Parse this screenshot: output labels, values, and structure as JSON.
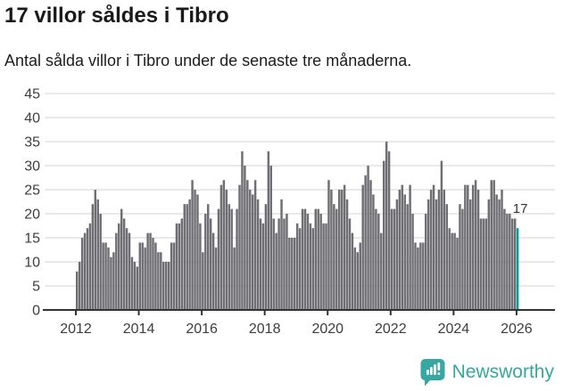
{
  "header": {
    "title": "17 villor såldes i Tibro",
    "subtitle": "Antal sålda villor i Tibro under de senaste tre månaderna."
  },
  "footer": {
    "brand": "Newsworthy"
  },
  "colors": {
    "bar": "#6e6e73",
    "highlight": "#00a096",
    "brand_teal": "#38a7a1",
    "gridline": "#dcdcdc",
    "axis_line": "#333333",
    "axis_text": "#3d3d3d",
    "annotation_text": "#333333"
  },
  "chart_data": {
    "type": "bar",
    "title": "17 villor såldes i Tibro",
    "subtitle": "Antal sålda villor i Tibro under de senaste tre månaderna.",
    "frequency": "monthly",
    "start_year": 2012,
    "start_month": 1,
    "ylim": [
      0,
      45
    ],
    "y_ticks": [
      0,
      5,
      10,
      15,
      20,
      25,
      30,
      35,
      40,
      45
    ],
    "x_ticks": [
      2012,
      2014,
      2016,
      2018,
      2020,
      2022,
      2024,
      2026
    ],
    "grid": "horizontal",
    "legend": "none",
    "annotation": {
      "label": "17",
      "applies_to": "last-bar"
    },
    "highlight_last_bar": true,
    "values": [
      8,
      10,
      15,
      16,
      17,
      18,
      22,
      25,
      23,
      20,
      14,
      14,
      13,
      11,
      12,
      16,
      18,
      21,
      19,
      17,
      16,
      11,
      10,
      9,
      14,
      14,
      13,
      16,
      16,
      15,
      14,
      12,
      12,
      10,
      10,
      10,
      14,
      14,
      18,
      18,
      19,
      22,
      22,
      23,
      27,
      25,
      24,
      18,
      12,
      20,
      22,
      19,
      16,
      13,
      21,
      26,
      27,
      25,
      22,
      21,
      13,
      21,
      26,
      33,
      30,
      27,
      25,
      24,
      27,
      23,
      19,
      18,
      22,
      33,
      30,
      19,
      16,
      19,
      23,
      19,
      20,
      15,
      15,
      15,
      18,
      17,
      21,
      21,
      20,
      18,
      17,
      21,
      21,
      20,
      18,
      18,
      27,
      25,
      22,
      21,
      25,
      25,
      26,
      23,
      19,
      16,
      13,
      12,
      14,
      26,
      28,
      30,
      27,
      24,
      21,
      20,
      16,
      31,
      35,
      33,
      21,
      21,
      23,
      25,
      26,
      24,
      22,
      26,
      20,
      14,
      13,
      14,
      14,
      20,
      23,
      25,
      26,
      23,
      25,
      31,
      25,
      22,
      17,
      16,
      16,
      15,
      22,
      21,
      26,
      26,
      23,
      26,
      27,
      25,
      19,
      19,
      19,
      23,
      27,
      27,
      24,
      23,
      25,
      21,
      20,
      20,
      19,
      19,
      17
    ]
  }
}
